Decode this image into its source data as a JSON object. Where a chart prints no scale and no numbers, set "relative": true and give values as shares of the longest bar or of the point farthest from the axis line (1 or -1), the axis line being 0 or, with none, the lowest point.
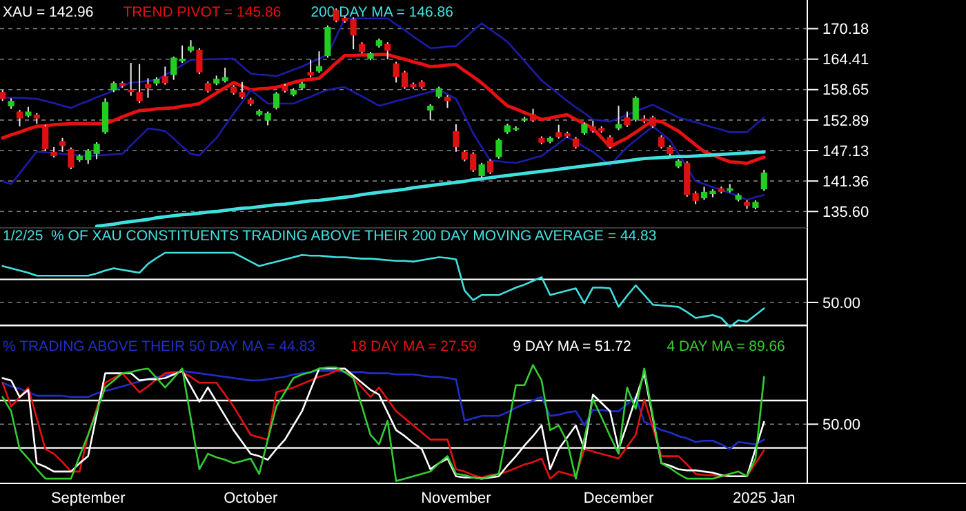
{
  "chart_data": [
    {
      "type": "candlestick",
      "title": "XAU = 142.96",
      "categories": [
        null,
        null,
        null,
        null,
        null,
        null,
        null,
        null,
        null,
        null,
        null,
        null,
        null,
        null,
        null,
        null,
        null,
        null,
        null,
        null,
        null,
        null,
        null,
        null,
        null,
        null,
        null,
        null,
        null,
        null,
        null,
        null,
        null,
        null,
        null,
        null,
        null,
        null,
        null,
        null,
        null,
        null,
        null,
        null,
        null,
        null,
        null,
        null,
        null,
        null,
        null,
        null,
        null,
        null,
        null,
        null,
        null,
        null,
        null,
        null,
        null,
        null,
        null,
        null,
        null,
        null,
        null,
        null,
        null,
        null,
        null,
        null,
        null,
        null,
        null,
        null,
        null,
        null,
        null,
        null,
        null,
        null,
        null,
        null,
        null,
        null,
        null,
        null,
        null,
        null
      ],
      "ylim": [
        132.5,
        175.6
      ],
      "tick_labels": "y",
      "grid": "y",
      "yticks": [
        {
          "value": 135.6,
          "label": "135.60"
        },
        {
          "value": 141.36,
          "label": "141.36"
        },
        {
          "value": 147.13,
          "label": "147.13"
        },
        {
          "value": 152.89,
          "label": "152.89"
        },
        {
          "value": 158.65,
          "label": "158.65"
        },
        {
          "value": 164.41,
          "label": "164.41"
        },
        {
          "value": 170.18,
          "label": "170.18"
        }
      ],
      "series": [
        {
          "ohlc": [
            [
              158.2,
              158.6,
              156.5,
              156.9
            ],
            [
              155.5,
              157.0,
              155.0,
              156.5
            ],
            [
              154.5,
              154.8,
              151.7,
              153.2
            ],
            [
              153.7,
              155.4,
              153.4,
              154.5
            ],
            [
              153.9,
              154.2,
              152.2,
              153.2
            ],
            [
              151.7,
              152.0,
              147.0,
              147.4
            ],
            [
              146.9,
              147.8,
              145.8,
              146.1
            ],
            [
              148.9,
              149.5,
              146.9,
              148.0
            ],
            [
              147.4,
              147.7,
              143.6,
              143.9
            ],
            [
              145.3,
              146.4,
              145.0,
              146.1
            ],
            [
              145.3,
              147.4,
              144.6,
              147.1
            ],
            [
              146.5,
              148.7,
              145.5,
              148.4
            ],
            [
              150.6,
              157.0,
              150.3,
              156.3
            ],
            [
              158.5,
              160.2,
              158.2,
              159.9
            ],
            [
              159.9,
              160.2,
              159.0,
              159.3
            ],
            [
              158.6,
              163.7,
              157.5,
              158.2
            ],
            [
              158.2,
              163.5,
              156.1,
              156.5
            ],
            [
              159.7,
              160.8,
              157.1,
              158.9
            ],
            [
              159.8,
              161.0,
              159.4,
              160.7
            ],
            [
              161.2,
              163.0,
              159.6,
              159.9
            ],
            [
              161.4,
              164.9,
              160.5,
              164.7
            ],
            [
              164.0,
              167.0,
              163.7,
              164.5
            ],
            [
              166.0,
              168.0,
              165.7,
              166.8
            ],
            [
              166.2,
              166.5,
              161.6,
              161.9
            ],
            [
              159.9,
              160.2,
              158.1,
              158.4
            ],
            [
              159.8,
              161.3,
              159.5,
              160.7
            ],
            [
              160.3,
              162.8,
              160.0,
              161.0
            ],
            [
              159.2,
              159.5,
              157.7,
              158.0
            ],
            [
              158.2,
              160.1,
              156.9,
              157.2
            ],
            [
              156.8,
              157.1,
              155.6,
              155.9
            ],
            [
              153.9,
              154.9,
              153.6,
              154.6
            ],
            [
              152.8,
              154.5,
              151.9,
              154.2
            ],
            [
              155.2,
              158.2,
              154.9,
              157.9
            ],
            [
              159.4,
              159.7,
              158.1,
              158.4
            ],
            [
              157.7,
              158.9,
              157.4,
              158.6
            ],
            [
              158.9,
              160.1,
              158.6,
              159.8
            ],
            [
              162.0,
              164.3,
              161.0,
              161.3
            ],
            [
              162.1,
              165.9,
              161.8,
              163.1
            ],
            [
              165.0,
              170.8,
              164.7,
              170.5
            ],
            [
              173.7,
              174.0,
              171.4,
              171.7
            ],
            [
              172.2,
              172.5,
              171.3,
              171.6
            ],
            [
              172.0,
              172.3,
              166.3,
              168.9
            ],
            [
              167.3,
              167.6,
              165.5,
              165.8
            ],
            [
              164.5,
              165.8,
              164.2,
              165.5
            ],
            [
              166.9,
              168.3,
              166.6,
              168.0
            ],
            [
              167.3,
              167.6,
              164.4,
              166.0
            ],
            [
              163.6,
              163.9,
              160.0,
              161.0
            ],
            [
              161.9,
              162.2,
              158.8,
              159.1
            ],
            [
              159.7,
              160.0,
              158.8,
              159.1
            ],
            [
              160.1,
              160.4,
              158.8,
              159.1
            ],
            [
              154.7,
              155.9,
              152.9,
              155.6
            ],
            [
              157.3,
              159.2,
              157.0,
              158.9
            ],
            [
              157.3,
              157.6,
              155.2,
              156.5
            ],
            [
              150.8,
              152.1,
              146.9,
              147.8
            ],
            [
              146.9,
              147.2,
              145.1,
              145.4
            ],
            [
              146.5,
              146.8,
              143.1,
              143.4
            ],
            [
              142.3,
              144.8,
              142.0,
              144.5
            ],
            [
              145.2,
              145.5,
              142.7,
              143.0
            ],
            [
              145.9,
              149.4,
              145.6,
              149.1
            ],
            [
              150.6,
              152.2,
              150.3,
              151.9
            ],
            [
              151.1,
              151.7,
              150.8,
              151.4
            ],
            [
              152.8,
              153.5,
              152.5,
              153.2
            ],
            [
              154.0,
              155.0,
              152.5,
              152.8
            ],
            [
              149.5,
              149.8,
              148.3,
              148.6
            ],
            [
              148.8,
              149.8,
              148.5,
              149.5
            ],
            [
              150.6,
              152.0,
              149.4,
              149.7
            ],
            [
              150.4,
              150.7,
              149.5,
              149.8
            ],
            [
              149.4,
              149.7,
              147.5,
              147.8
            ],
            [
              150.4,
              152.4,
              150.1,
              152.1
            ],
            [
              151.7,
              152.8,
              150.5,
              150.8
            ],
            [
              151.4,
              151.7,
              150.5,
              150.8
            ],
            [
              149.7,
              150.0,
              147.5,
              147.8
            ],
            [
              151.3,
              155.6,
              151.0,
              152.1
            ],
            [
              153.4,
              154.5,
              151.6,
              151.9
            ],
            [
              152.9,
              157.4,
              152.6,
              157.1
            ],
            [
              153.2,
              153.8,
              152.3,
              152.6
            ],
            [
              153.4,
              153.7,
              151.4,
              151.7
            ],
            [
              149.7,
              150.0,
              147.5,
              147.8
            ],
            [
              147.8,
              148.1,
              146.2,
              146.5
            ],
            [
              144.1,
              145.5,
              143.8,
              145.2
            ],
            [
              144.8,
              145.1,
              138.4,
              138.7
            ],
            [
              139.1,
              139.4,
              137.0,
              137.6
            ],
            [
              138.1,
              140.3,
              137.8,
              139.3
            ],
            [
              138.9,
              139.8,
              138.3,
              139.5
            ],
            [
              140.0,
              140.3,
              139.0,
              139.3
            ],
            [
              139.5,
              140.8,
              139.2,
              140.0
            ],
            [
              137.8,
              139.0,
              137.5,
              138.7
            ],
            [
              137.4,
              137.7,
              136.1,
              136.7
            ],
            [
              136.3,
              137.7,
              136.0,
              137.4
            ],
            [
              139.8,
              143.5,
              139.5,
              142.96
            ]
          ]
        },
        {
          "type": "line",
          "name": "TREND PIVOT = 145.86",
          "color": "#e81010",
          "values": [
            149.5,
            150.1,
            150.6,
            151.2,
            151.7,
            151.8,
            152.0,
            152.1,
            152.2,
            152.2,
            152.2,
            152.2,
            152.2,
            152.8,
            153.5,
            154.1,
            154.7,
            154.8,
            155.0,
            155.1,
            155.2,
            155.5,
            155.7,
            156.0,
            157.0,
            158.0,
            159.0,
            160.0,
            159.3,
            158.6,
            158.8,
            158.9,
            159.1,
            159.5,
            160.0,
            160.4,
            160.6,
            160.8,
            162.2,
            163.7,
            165.1,
            165.1,
            165.2,
            165.2,
            165.3,
            165.3,
            164.8,
            164.4,
            163.9,
            163.5,
            163.0,
            163.1,
            163.3,
            163.4,
            162.2,
            161.1,
            159.9,
            158.5,
            157.0,
            155.6,
            155.0,
            154.3,
            153.7,
            153.0,
            153.3,
            153.6,
            153.9,
            153.0,
            152.2,
            151.3,
            149.6,
            147.8,
            148.7,
            149.5,
            150.6,
            151.7,
            152.8,
            152.6,
            151.7,
            150.8,
            149.5,
            148.2,
            146.9,
            146.3,
            145.6,
            145.0,
            144.9,
            144.7,
            145.3,
            145.86
          ]
        },
        {
          "type": "line",
          "color": "#1c1ca8",
          "values": [
            157.2,
            157.1,
            157.1,
            157.0,
            156.9,
            156.5,
            156.1,
            155.6,
            155.2,
            155.9,
            156.5,
            157.2,
            157.8,
            158.5,
            159.3,
            160.0,
            160.1,
            160.3,
            160.4,
            161.4,
            162.3,
            163.3,
            164.3,
            164.3,
            164.4,
            164.4,
            164.5,
            164.5,
            163.1,
            161.7,
            161.5,
            161.4,
            161.2,
            161.8,
            162.4,
            163.0,
            163.8,
            164.5,
            165.3,
            168.7,
            172.1,
            172.1,
            172.1,
            172.1,
            172.1,
            172.1,
            171.0,
            169.9,
            168.7,
            167.6,
            166.5,
            166.6,
            166.8,
            166.9,
            168.3,
            169.8,
            171.2,
            170.0,
            168.9,
            167.7,
            165.9,
            164.1,
            162.2,
            160.4,
            159.1,
            157.8,
            156.5,
            155.3,
            154.2,
            153.0,
            152.8,
            152.6,
            153.2,
            153.9,
            154.5,
            155.2,
            155.8,
            155.0,
            154.2,
            153.4,
            152.9,
            152.5,
            152.0,
            151.5,
            151.1,
            150.6,
            150.6,
            150.6,
            152.0,
            153.4
          ]
        },
        {
          "type": "line",
          "color": "#1c1ca8",
          "values": [
            141.3,
            140.8,
            142.8,
            144.9,
            146.9,
            146.8,
            146.6,
            146.5,
            146.4,
            146.2,
            146.1,
            146.2,
            146.3,
            146.4,
            146.5,
            148.1,
            149.7,
            151.3,
            151.1,
            150.8,
            149.4,
            147.9,
            146.5,
            146.2,
            147.9,
            149.5,
            151.8,
            154.1,
            156.3,
            158.6,
            157.3,
            156.0,
            156.0,
            156.0,
            156.0,
            156.7,
            157.3,
            158.0,
            158.6,
            158.9,
            159.1,
            158.2,
            157.4,
            156.5,
            155.6,
            156.0,
            156.5,
            156.9,
            157.3,
            157.8,
            158.2,
            158.6,
            157.8,
            156.9,
            153.7,
            150.4,
            147.8,
            145.2,
            145.1,
            144.9,
            144.8,
            145.2,
            145.7,
            146.1,
            147.3,
            148.5,
            149.7,
            148.8,
            147.8,
            146.9,
            145.6,
            144.3,
            146.1,
            147.8,
            149.1,
            150.4,
            151.7,
            150.4,
            149.1,
            146.5,
            143.9,
            141.3,
            140.8,
            140.2,
            139.7,
            139.1,
            138.5,
            137.8,
            138.3,
            138.7
          ]
        },
        {
          "type": "line",
          "name": "200 DAY MA = 146.86",
          "color": "#40e0e0",
          "values": [
            null,
            null,
            null,
            null,
            null,
            null,
            null,
            null,
            null,
            null,
            null,
            132.8,
            133.0,
            133.2,
            133.5,
            133.7,
            133.9,
            134.1,
            134.4,
            134.6,
            134.8,
            135.0,
            135.1,
            135.3,
            135.5,
            135.6,
            135.8,
            136.0,
            136.2,
            136.3,
            136.5,
            136.7,
            136.9,
            137.0,
            137.2,
            137.4,
            137.6,
            137.7,
            137.9,
            138.1,
            138.3,
            138.5,
            138.8,
            139.0,
            139.2,
            139.4,
            139.6,
            139.8,
            140.1,
            140.3,
            140.5,
            140.7,
            140.9,
            141.1,
            141.3,
            141.6,
            141.8,
            142.0,
            142.2,
            142.4,
            142.6,
            142.8,
            143.0,
            143.2,
            143.4,
            143.6,
            143.8,
            144.0,
            144.2,
            144.4,
            144.6,
            144.8,
            145.0,
            145.2,
            145.4,
            145.6,
            145.7,
            145.8,
            145.9,
            146.0,
            146.0,
            146.1,
            146.2,
            146.3,
            146.4,
            146.5,
            146.6,
            146.7,
            146.8,
            146.86
          ]
        }
      ]
    },
    {
      "type": "line",
      "relative": true,
      "tick_labels": false,
      "categories": [
        null,
        null,
        null,
        null,
        null,
        null,
        null,
        null,
        null,
        null,
        null,
        null,
        null,
        null,
        null,
        null,
        null,
        null,
        null,
        null,
        null,
        null,
        null,
        null,
        null,
        null,
        null,
        null,
        null,
        null,
        null,
        null,
        null,
        null,
        null,
        null,
        null,
        null,
        null,
        null,
        null,
        null,
        null,
        null,
        null,
        null,
        null,
        null,
        null,
        null,
        null,
        null,
        null,
        null,
        null,
        null,
        null,
        null,
        null,
        null,
        null,
        null,
        null,
        null,
        null,
        null,
        null,
        null,
        null,
        null,
        null,
        null,
        null,
        null,
        null,
        null,
        null,
        null,
        null,
        null,
        null,
        null,
        null,
        null,
        null,
        null,
        null,
        null,
        null,
        null
      ],
      "annotations": [
        "50.00"
      ],
      "ref_lines": [
        {
          "axis": "y",
          "value": 0.64,
          "color": "#ffffff"
        },
        {
          "axis": "y",
          "value": 0.02,
          "color": "#ffffff"
        },
        {
          "axis": "y",
          "value": 0.33,
          "color": "#808080",
          "line_style": "dashed"
        }
      ],
      "series": [
        {
          "name": "1/2/25  % OF XAU CONSTITUENTS TRADING ABOVE THEIR 200 DAY MOVING AVERAGE = 44.83",
          "color": "#40e0e0",
          "values": [
            0.82,
            0.79,
            0.76,
            0.73,
            0.69,
            0.69,
            0.69,
            0.69,
            0.69,
            0.69,
            0.69,
            0.72,
            0.76,
            0.79,
            0.77,
            0.75,
            0.73,
            0.85,
            0.93,
            1,
            1,
            1,
            1,
            1,
            1,
            1,
            1,
            1,
            0.94,
            0.88,
            0.82,
            0.85,
            0.88,
            0.91,
            0.94,
            0.97,
            0.96,
            0.96,
            0.95,
            0.94,
            0.94,
            0.93,
            0.92,
            0.92,
            0.91,
            0.9,
            0.89,
            0.89,
            0.88,
            0.9,
            0.92,
            0.94,
            0.93,
            0.91,
            0.49,
            0.36,
            0.43,
            0.43,
            0.43,
            0.48,
            0.53,
            0.57,
            0.62,
            0.67,
            0.43,
            0.46,
            0.49,
            0.52,
            0.32,
            0.53,
            0.53,
            0.52,
            0.27,
            0.42,
            0.56,
            0.43,
            0.3,
            0.29,
            0.28,
            0.27,
            0.2,
            0.12,
            0.14,
            0.16,
            0.12,
            0,
            0.09,
            0.07,
            0.16,
            0.25
          ]
        }
      ]
    },
    {
      "type": "line",
      "relative": true,
      "tick_labels": "x",
      "categories": [
        null,
        null,
        null,
        null,
        null,
        null,
        null,
        null,
        null,
        null,
        "September",
        null,
        null,
        null,
        null,
        null,
        null,
        null,
        null,
        null,
        null,
        null,
        null,
        null,
        null,
        null,
        null,
        null,
        null,
        "October",
        null,
        null,
        null,
        null,
        null,
        null,
        null,
        null,
        null,
        null,
        null,
        null,
        null,
        null,
        null,
        null,
        null,
        null,
        null,
        null,
        null,
        null,
        null,
        "November",
        null,
        null,
        null,
        null,
        null,
        null,
        null,
        null,
        null,
        null,
        null,
        null,
        null,
        null,
        null,
        null,
        null,
        null,
        "December",
        null,
        null,
        null,
        null,
        null,
        null,
        null,
        null,
        null,
        null,
        null,
        null,
        null,
        null,
        null,
        null,
        "2025 Jan"
      ],
      "annotations": [
        "50.00"
      ],
      "ref_lines": [
        {
          "axis": "y",
          "value": 0.7,
          "color": "#ffffff"
        },
        {
          "axis": "y",
          "value": 0.3,
          "color": "#ffffff"
        },
        {
          "axis": "y",
          "value": 0.5,
          "color": "#808080",
          "line_style": "dashed"
        }
      ],
      "series": [
        {
          "name": "% TRADING ABOVE THEIR 50 DAY MA = 44.83",
          "color": "#1f2fc8",
          "values": [
            0.85,
            0.82,
            0.8,
            0.77,
            0.74,
            0.74,
            0.74,
            0.74,
            0.73,
            0.73,
            0.73,
            0.76,
            0.78,
            0.8,
            0.82,
            0.84,
            0.86,
            0.88,
            0.9,
            0.91,
            0.93,
            0.95,
            0.94,
            0.93,
            0.92,
            0.91,
            0.9,
            0.89,
            0.88,
            0.87,
            0.87,
            0.88,
            0.89,
            0.9,
            0.92,
            0.93,
            0.94,
            0.95,
            0.95,
            0.95,
            0.94,
            0.94,
            0.94,
            0.93,
            0.93,
            0.93,
            0.92,
            0.92,
            0.92,
            0.91,
            0.9,
            0.9,
            0.89,
            0.88,
            0.53,
            0.55,
            0.57,
            0.57,
            0.57,
            0.6,
            0.64,
            0.67,
            0.7,
            0.73,
            0.57,
            0.58,
            0.6,
            0.61,
            0.49,
            0.62,
            0.62,
            0.61,
            0.61,
            0.67,
            0.73,
            0.52,
            0.49,
            0.45,
            0.43,
            0.4,
            0.38,
            0.35,
            0.36,
            0.36,
            0.33,
            0.29,
            0.35,
            0.34,
            0.33,
            0.37
          ]
        },
        {
          "name": "18 DAY MA = 27.59",
          "color": "#e81010",
          "values": [
            0.85,
            0.65,
            0.73,
            0.81,
            0.55,
            0.29,
            0.25,
            0.18,
            0.1,
            0.1,
            0.41,
            0.63,
            0.85,
            0.89,
            0.93,
            0.85,
            0.77,
            0.82,
            0.88,
            0.93,
            0.94,
            0.94,
            0.9,
            0.85,
            0.85,
            0.85,
            0.75,
            0.65,
            0.53,
            0.41,
            0.39,
            0.37,
            0.77,
            0.79,
            0.81,
            0.84,
            0.87,
            0.9,
            0.92,
            0.95,
            0.97,
            0.89,
            0.81,
            0.73,
            0.81,
            0.71,
            0.61,
            0.55,
            0.49,
            0.43,
            0.37,
            0.37,
            0.37,
            0.12,
            0.1,
            0.07,
            0.05,
            0.07,
            0.08,
            0.1,
            0.13,
            0.16,
            0.18,
            0.21,
            0.04,
            0.1,
            0.08,
            0.06,
            0.29,
            0.27,
            0.25,
            0.23,
            0.21,
            0.31,
            0.41,
            0.71,
            0.47,
            0.23,
            0.23,
            0.23,
            0.16,
            0.08,
            0.07,
            0.07,
            0.06,
            0.06,
            0.06,
            0.06,
            0.17,
            0.28
          ]
        },
        {
          "name": "9 DAY MA = 51.72",
          "color": "#ffffff",
          "values": [
            0.89,
            0.87,
            0.73,
            0.79,
            0.17,
            0.14,
            0.1,
            0.1,
            0.1,
            0.17,
            0.23,
            0.58,
            0.93,
            0.93,
            0.93,
            0.93,
            0.87,
            0.88,
            0.88,
            0.89,
            0.92,
            0.95,
            0.82,
            0.69,
            0.81,
            0.69,
            0.57,
            0.45,
            0.35,
            0.25,
            0.23,
            0.2,
            0.29,
            0.37,
            0.49,
            0.61,
            0.79,
            0.97,
            0.97,
            0.97,
            0.97,
            0.91,
            0.85,
            0.79,
            0.75,
            0.6,
            0.45,
            0.4,
            0.34,
            0.29,
            0.12,
            0.17,
            0.21,
            0.06,
            0.05,
            0.05,
            0.04,
            0.05,
            0.06,
            0.15,
            0.23,
            0.32,
            0.4,
            0.49,
            0.12,
            0.29,
            0.39,
            0.49,
            0.29,
            0.75,
            0.68,
            0.61,
            0.29,
            0.5,
            0.72,
            0.93,
            0.55,
            0.17,
            0.15,
            0.12,
            0.11,
            0.11,
            0.1,
            0.09,
            0.07,
            0.06,
            0.06,
            0.06,
            0.29,
            0.52
          ]
        },
        {
          "name": "4 DAY MA = 89.66",
          "color": "#33cc33",
          "values": [
            0.73,
            0.61,
            0.29,
            0.21,
            0.12,
            0.04,
            0.04,
            0.04,
            0.04,
            0.23,
            0.41,
            0.61,
            0.81,
            0.87,
            0.93,
            0.94,
            0.96,
            0.97,
            0.89,
            0.81,
            0.89,
            0.97,
            0.55,
            0.12,
            0.25,
            0.22,
            0.2,
            0.17,
            0.19,
            0.21,
            0.08,
            0.37,
            0.65,
            0.77,
            0.89,
            0.92,
            0.94,
            0.97,
            0.98,
            0.98,
            0.94,
            0.89,
            0.65,
            0.41,
            0.33,
            0.53,
            0.02,
            0.04,
            0.06,
            0.08,
            0.1,
            0.17,
            0.23,
            0.08,
            0.07,
            0.05,
            0.04,
            0.06,
            0.08,
            0.45,
            0.83,
            0.83,
            1,
            0.87,
            0.45,
            0.49,
            0.35,
            0.04,
            0.38,
            0.71,
            0.56,
            0.4,
            0.25,
            0.81,
            0.63,
            0.97,
            0.57,
            0.17,
            0.13,
            0.08,
            0.04,
            0.04,
            0.04,
            0.04,
            0.06,
            0.08,
            0.1,
            0.06,
            0.21,
            0.9
          ]
        }
      ]
    }
  ]
}
